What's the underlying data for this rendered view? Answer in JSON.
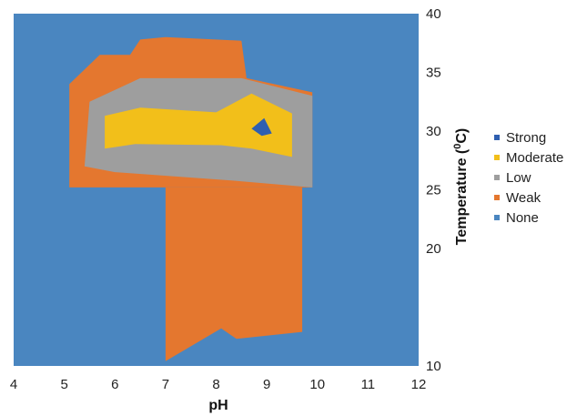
{
  "chart_data": {
    "type": "heatmap",
    "title": "",
    "xlabel": "pH",
    "ylabel_main": "Temperature (",
    "ylabel_sup": "0",
    "ylabel_end": "C)",
    "xlim": [
      4,
      12
    ],
    "ylim": [
      10,
      40
    ],
    "xticks": [
      "4",
      "5",
      "6",
      "7",
      "8",
      "9",
      "10",
      "11",
      "12"
    ],
    "yticks": [
      "10",
      "20",
      "25",
      "30",
      "35",
      "40"
    ],
    "y_axis_side": "right",
    "legend_position": "right",
    "grid": false,
    "background_level": "None",
    "levels": [
      {
        "name": "None",
        "color": "#4a86c0",
        "regions": [
          [
            [
              5,
              25.2
            ],
            [
              5,
              35
            ],
            [
              10,
              35
            ],
            [
              10,
              25.2
            ]
          ]
        ]
      },
      {
        "name": "Weak",
        "color": "#e4772f",
        "regions": [
          [
            [
              5.1,
              25.2
            ],
            [
              5.1,
              34
            ],
            [
              5.7,
              36.5
            ],
            [
              6.3,
              36.5
            ],
            [
              6.5,
              37.8
            ],
            [
              7.0,
              38.0
            ],
            [
              8.5,
              37.7
            ],
            [
              8.6,
              34.5
            ],
            [
              9.9,
              33.3
            ],
            [
              9.9,
              25.2
            ]
          ],
          [
            [
              7.0,
              25.2
            ],
            [
              7.0,
              10.4
            ],
            [
              8.1,
              13.2
            ],
            [
              8.4,
              12.3
            ],
            [
              9.7,
              12.9
            ],
            [
              9.7,
              25.2
            ]
          ]
        ]
      },
      {
        "name": "Low",
        "color": "#9e9e9e",
        "regions": [
          [
            [
              5.4,
              27
            ],
            [
              5.5,
              32.5
            ],
            [
              6.5,
              34.5
            ],
            [
              8.5,
              34.5
            ],
            [
              9.9,
              33.0
            ],
            [
              9.9,
              25.2
            ],
            [
              8.3,
              25.8
            ],
            [
              6.0,
              26.5
            ]
          ]
        ]
      },
      {
        "name": "Moderate",
        "color": "#f2bf1a",
        "regions": [
          [
            [
              5.8,
              28.5
            ],
            [
              5.8,
              31.3
            ],
            [
              6.5,
              32
            ],
            [
              8.0,
              31.6
            ],
            [
              8.7,
              33.2
            ],
            [
              9.5,
              31.5
            ],
            [
              9.5,
              27.8
            ],
            [
              8.7,
              28.5
            ],
            [
              8.1,
              28.8
            ],
            [
              6.4,
              28.9
            ]
          ]
        ]
      },
      {
        "name": "Strong",
        "color": "#2f5fb0",
        "regions": [
          [
            [
              8.7,
              30.2
            ],
            [
              8.95,
              31.1
            ],
            [
              9.1,
              29.8
            ],
            [
              8.9,
              29.6
            ]
          ]
        ]
      }
    ],
    "legend": [
      {
        "label": "Strong",
        "color": "#2f5fb0"
      },
      {
        "label": "Moderate",
        "color": "#f2bf1a"
      },
      {
        "label": "Low",
        "color": "#9e9e9e"
      },
      {
        "label": "Weak",
        "color": "#e4772f"
      },
      {
        "label": "None",
        "color": "#4a86c0"
      }
    ]
  }
}
